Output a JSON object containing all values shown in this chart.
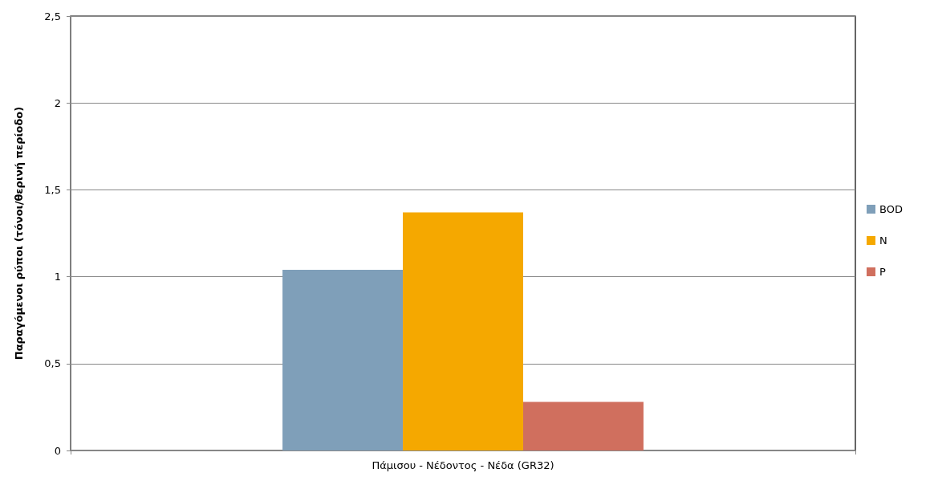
{
  "chart_data": {
    "type": "bar",
    "ylabel": "Παραγόμενοι ρύποι (τόνοι/θερινή περίοδο)",
    "categories": [
      "Πάμισου - Νέδοντος - Νέδα (GR32)"
    ],
    "series": [
      {
        "name": "BOD",
        "color": "#7f9fb9",
        "values": [
          1.04
        ]
      },
      {
        "name": "N",
        "color": "#f5a800",
        "values": [
          1.37
        ]
      },
      {
        "name": "P",
        "color": "#d06f5e",
        "values": [
          0.28
        ]
      }
    ],
    "ylim": [
      0,
      2.5
    ],
    "yticks": [
      0,
      {
        "value": 0.5,
        "label": "0,5"
      },
      1,
      {
        "value": 1.5,
        "label": "1,5"
      },
      2,
      {
        "value": 2.5,
        "label": "2,5"
      }
    ],
    "grid": "y",
    "legend": "right"
  }
}
